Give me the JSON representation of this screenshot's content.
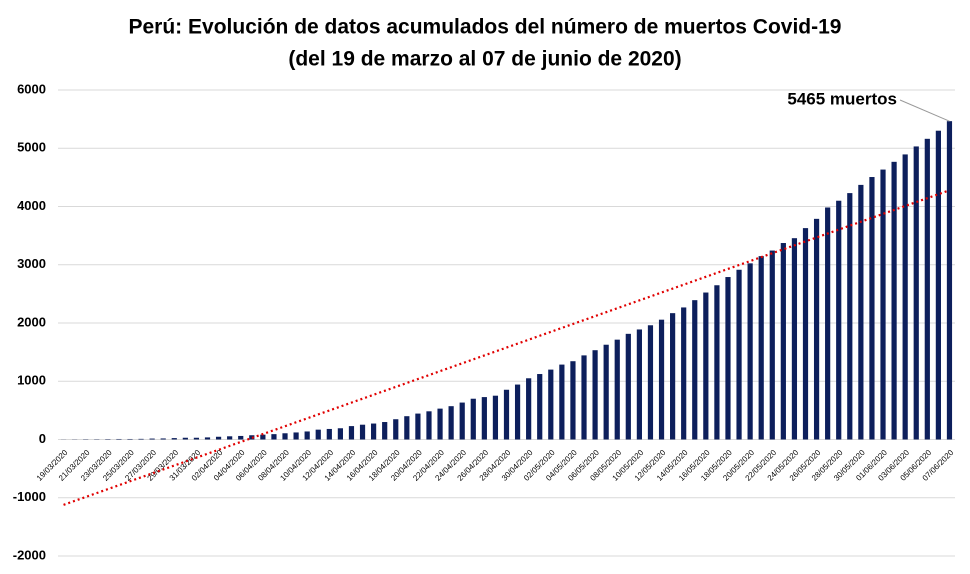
{
  "chart_data": {
    "type": "bar",
    "title": "Perú: Evolución de datos acumulados del número de muertos Covid-19",
    "subtitle": "(del 19 de marzo al 07 de junio de 2020)",
    "annotation": "5465 muertos",
    "categories": [
      "19/03/2020",
      null,
      "21/03/2020",
      null,
      "23/03/2020",
      null,
      "25/03/2020",
      null,
      "27/03/2020",
      null,
      "29/03/2020",
      null,
      "31/03/2020",
      null,
      "02/04/2020",
      null,
      "04/04/2020",
      null,
      "06/04/2020",
      null,
      "08/04/2020",
      null,
      "10/04/2020",
      null,
      "12/04/2020",
      null,
      "14/04/2020",
      null,
      "16/04/2020",
      null,
      "18/04/2020",
      null,
      "20/04/2020",
      null,
      "22/04/2020",
      null,
      "24/04/2020",
      null,
      "26/04/2020",
      null,
      "28/04/2020",
      null,
      "30/04/2020",
      null,
      "02/05/2020",
      null,
      "04/05/2020",
      null,
      "06/05/2020",
      null,
      "08/05/2020",
      null,
      "10/05/2020",
      null,
      "12/05/2020",
      null,
      "14/05/2020",
      null,
      "16/05/2020",
      null,
      "18/05/2020",
      null,
      "20/05/2020",
      null,
      "22/05/2020",
      null,
      "24/05/2020",
      null,
      "26/05/2020",
      null,
      "28/05/2020",
      null,
      "30/05/2020",
      null,
      "01/06/2020",
      null,
      "03/06/2020",
      null,
      "05/06/2020",
      null,
      "07/06/2020"
    ],
    "values": [
      2,
      3,
      5,
      5,
      7,
      9,
      9,
      11,
      16,
      18,
      24,
      30,
      30,
      36,
      47,
      55,
      61,
      73,
      83,
      92,
      107,
      121,
      138,
      169,
      181,
      193,
      230,
      254,
      274,
      300,
      348,
      400,
      445,
      484,
      530,
      572,
      634,
      700,
      728,
      752,
      854,
      943,
      1051,
      1124,
      1200,
      1286,
      1344,
      1444,
      1533,
      1627,
      1714,
      1814,
      1889,
      1961,
      2057,
      2169,
      2267,
      2392,
      2523,
      2648,
      2789,
      2914,
      3024,
      3148,
      3244,
      3373,
      3456,
      3629,
      3788,
      3983,
      4099,
      4230,
      4371,
      4506,
      4634,
      4767,
      4894,
      5031,
      5162,
      5301,
      5465
    ],
    "color": "#0d1f5c",
    "trendline": {
      "type": "linear",
      "color": "#e00000",
      "style": "dotted"
    },
    "ylim": [
      -2000,
      6000
    ],
    "yticks": [
      -2000,
      -1000,
      0,
      1000,
      2000,
      3000,
      4000,
      5000,
      6000
    ],
    "grid": true
  }
}
